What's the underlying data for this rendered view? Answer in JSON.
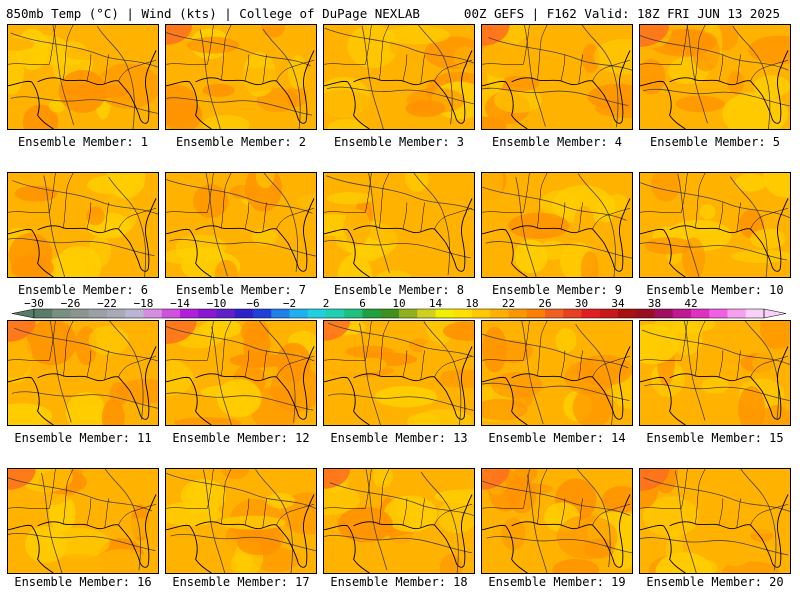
{
  "header": {
    "left": "850mb Temp (°C) | Wind (kts) | College of DuPage NEXLAB",
    "right": "00Z GEFS | F162 Valid: 18Z FRI JUN 13 2025"
  },
  "panel_label_prefix": "Ensemble Member: ",
  "members": [
    {
      "id": "1",
      "warmth": 0.45
    },
    {
      "id": "2",
      "warmth": 0.55
    },
    {
      "id": "3",
      "warmth": 0.45
    },
    {
      "id": "4",
      "warmth": 0.6
    },
    {
      "id": "5",
      "warmth": 0.65
    },
    {
      "id": "6",
      "warmth": 0.4
    },
    {
      "id": "7",
      "warmth": 0.45
    },
    {
      "id": "8",
      "warmth": 0.25
    },
    {
      "id": "9",
      "warmth": 0.3
    },
    {
      "id": "10",
      "warmth": 0.5
    },
    {
      "id": "11",
      "warmth": 0.6
    },
    {
      "id": "12",
      "warmth": 0.7
    },
    {
      "id": "13",
      "warmth": 0.55
    },
    {
      "id": "14",
      "warmth": 0.45
    },
    {
      "id": "15",
      "warmth": 0.5
    },
    {
      "id": "16",
      "warmth": 0.6
    },
    {
      "id": "17",
      "warmth": 0.45
    },
    {
      "id": "18",
      "warmth": 0.55
    },
    {
      "id": "19",
      "warmth": 0.6
    },
    {
      "id": "20",
      "warmth": 0.65
    }
  ],
  "colorbar": {
    "tick_labels": [
      "−30",
      "−26",
      "−22",
      "−18",
      "−14",
      "−10",
      "−6",
      "−2",
      "2",
      "6",
      "10",
      "14",
      "18",
      "22",
      "26",
      "30",
      "34",
      "38",
      "42"
    ],
    "colors": [
      "#5a7a6a",
      "#7a8f82",
      "#8c948f",
      "#9aa0a6",
      "#a8aab8",
      "#bcb4d4",
      "#d68ee0",
      "#d050e0",
      "#b020d8",
      "#8a18d0",
      "#6020c8",
      "#3020c8",
      "#2040d8",
      "#2080e8",
      "#20b0f0",
      "#20d0e0",
      "#20d0b0",
      "#20c080",
      "#20a040",
      "#409020",
      "#90b020",
      "#d0d020",
      "#f0f000",
      "#ffe000",
      "#ffc800",
      "#ffb000",
      "#ff9800",
      "#ff8000",
      "#f06020",
      "#e84020",
      "#e02020",
      "#c81818",
      "#a81010",
      "#981020",
      "#a01060",
      "#c01890",
      "#e030c0",
      "#f060e0",
      "#f8a0f0",
      "#f8d0f8"
    ]
  },
  "colors": {
    "base": "#ffb300",
    "warm": "#ff9300",
    "hot": "#ff6e1e",
    "cool": "#ffce00",
    "contour": "#4a4030",
    "coast": "#000000"
  }
}
